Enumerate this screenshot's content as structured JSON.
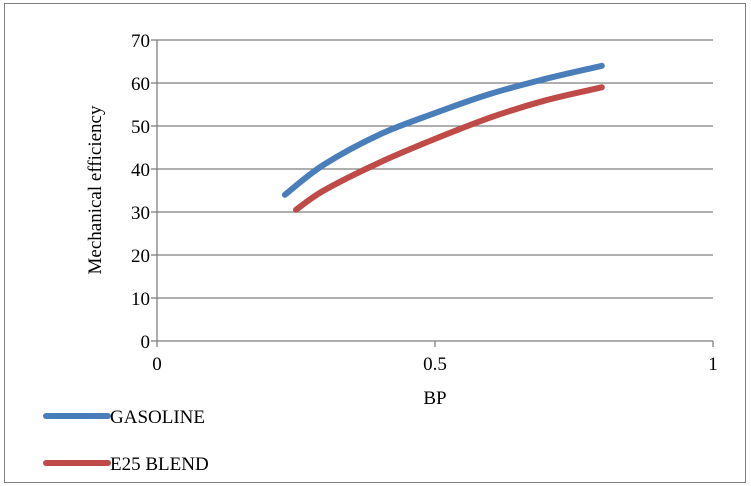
{
  "chart_data": {
    "type": "line",
    "title": "",
    "xlabel": "BP",
    "ylabel": "Mechanical efficiency",
    "xlim": [
      0,
      1
    ],
    "ylim": [
      0,
      70
    ],
    "x_ticks": [
      0,
      0.5,
      1
    ],
    "x_tick_labels": [
      "0",
      "0.5",
      "1"
    ],
    "y_ticks": [
      0,
      10,
      20,
      30,
      40,
      50,
      60,
      70
    ],
    "y_tick_labels": [
      "0",
      "10",
      "20",
      "30",
      "40",
      "50",
      "60",
      "70"
    ],
    "grid": "horizontal",
    "legend_position": "bottom-left",
    "series": [
      {
        "name": "GASOLINE",
        "color": "#4a7ebb",
        "points": [
          [
            0.23,
            34
          ],
          [
            0.3,
            41
          ],
          [
            0.4,
            48
          ],
          [
            0.5,
            53
          ],
          [
            0.6,
            57.5
          ],
          [
            0.7,
            61
          ],
          [
            0.8,
            64
          ]
        ]
      },
      {
        "name": "E25 BLEND",
        "color": "#be4b48",
        "points": [
          [
            0.25,
            30.5
          ],
          [
            0.3,
            35
          ],
          [
            0.4,
            41.5
          ],
          [
            0.5,
            47
          ],
          [
            0.6,
            52
          ],
          [
            0.7,
            56
          ],
          [
            0.8,
            59
          ]
        ]
      }
    ]
  }
}
